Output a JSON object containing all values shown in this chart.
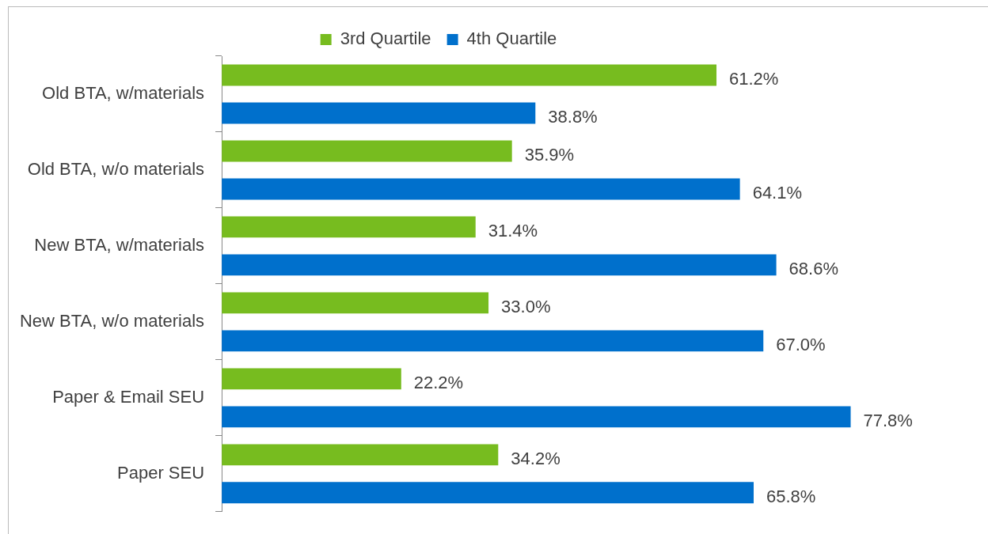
{
  "chart_data": {
    "type": "bar",
    "orientation": "horizontal",
    "legend": "top",
    "categories": [
      "Old BTA, w/materials",
      "Old BTA, w/o materials",
      "New BTA, w/materials",
      "New BTA, w/o materials",
      "Paper & Email SEU",
      "Paper SEU"
    ],
    "series": [
      {
        "name": "3rd Quartile",
        "color": "#77bc1f",
        "values": [
          61.2,
          35.9,
          31.4,
          33.0,
          22.2,
          34.2
        ],
        "value_labels": [
          "61.2%",
          "35.9%",
          "31.4%",
          "33.0%",
          "22.2%",
          "34.2%"
        ]
      },
      {
        "name": "4th Quartile",
        "color": "#0070cc",
        "values": [
          38.8,
          64.1,
          68.6,
          67.0,
          77.8,
          65.8
        ],
        "value_labels": [
          "38.8%",
          "64.1%",
          "68.6%",
          "67.0%",
          "77.8%",
          "65.8%"
        ]
      }
    ]
  }
}
